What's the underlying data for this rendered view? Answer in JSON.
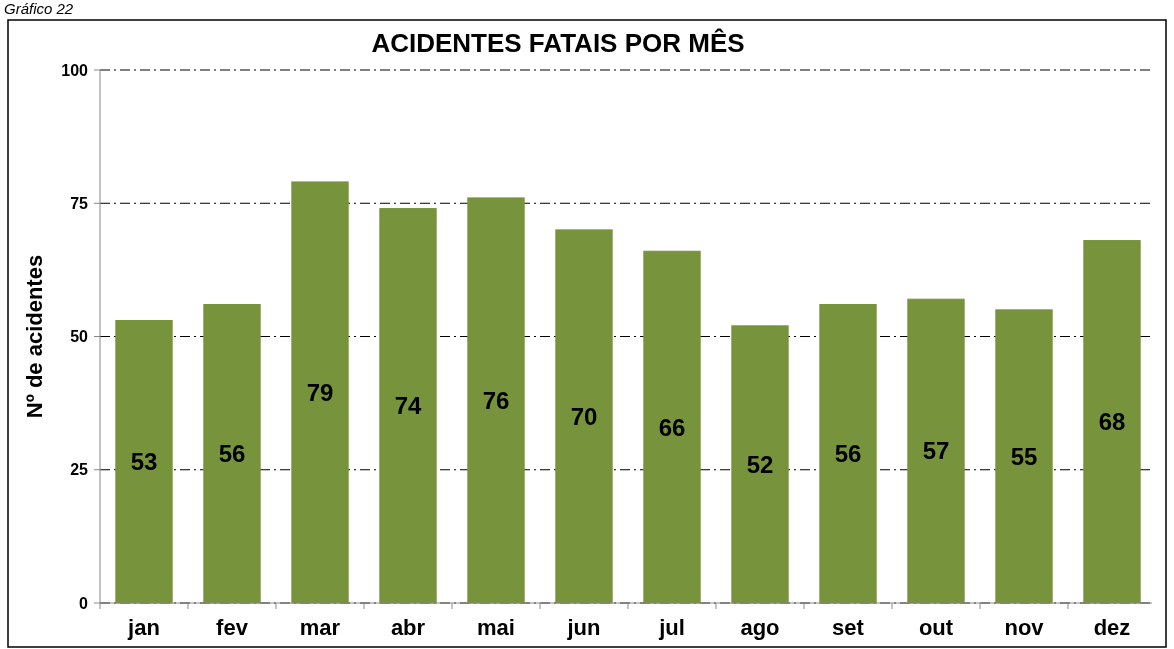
{
  "chart_data": {
    "type": "bar",
    "title": "ACIDENTES FATAIS POR MÊS",
    "ylabel": "Nº de acidentes",
    "annotations": [
      "Gráfico 22"
    ],
    "categories": [
      "jan",
      "fev",
      "mar",
      "abr",
      "mai",
      "jun",
      "jul",
      "ago",
      "set",
      "out",
      "nov",
      "dez"
    ],
    "values": [
      53,
      56,
      79,
      74,
      76,
      70,
      66,
      52,
      56,
      57,
      55,
      68
    ],
    "color": "#77933c",
    "ylim": [
      0,
      100
    ],
    "yticks": [
      0,
      25,
      50,
      75,
      100
    ],
    "grid": "y",
    "data_labels": true
  }
}
